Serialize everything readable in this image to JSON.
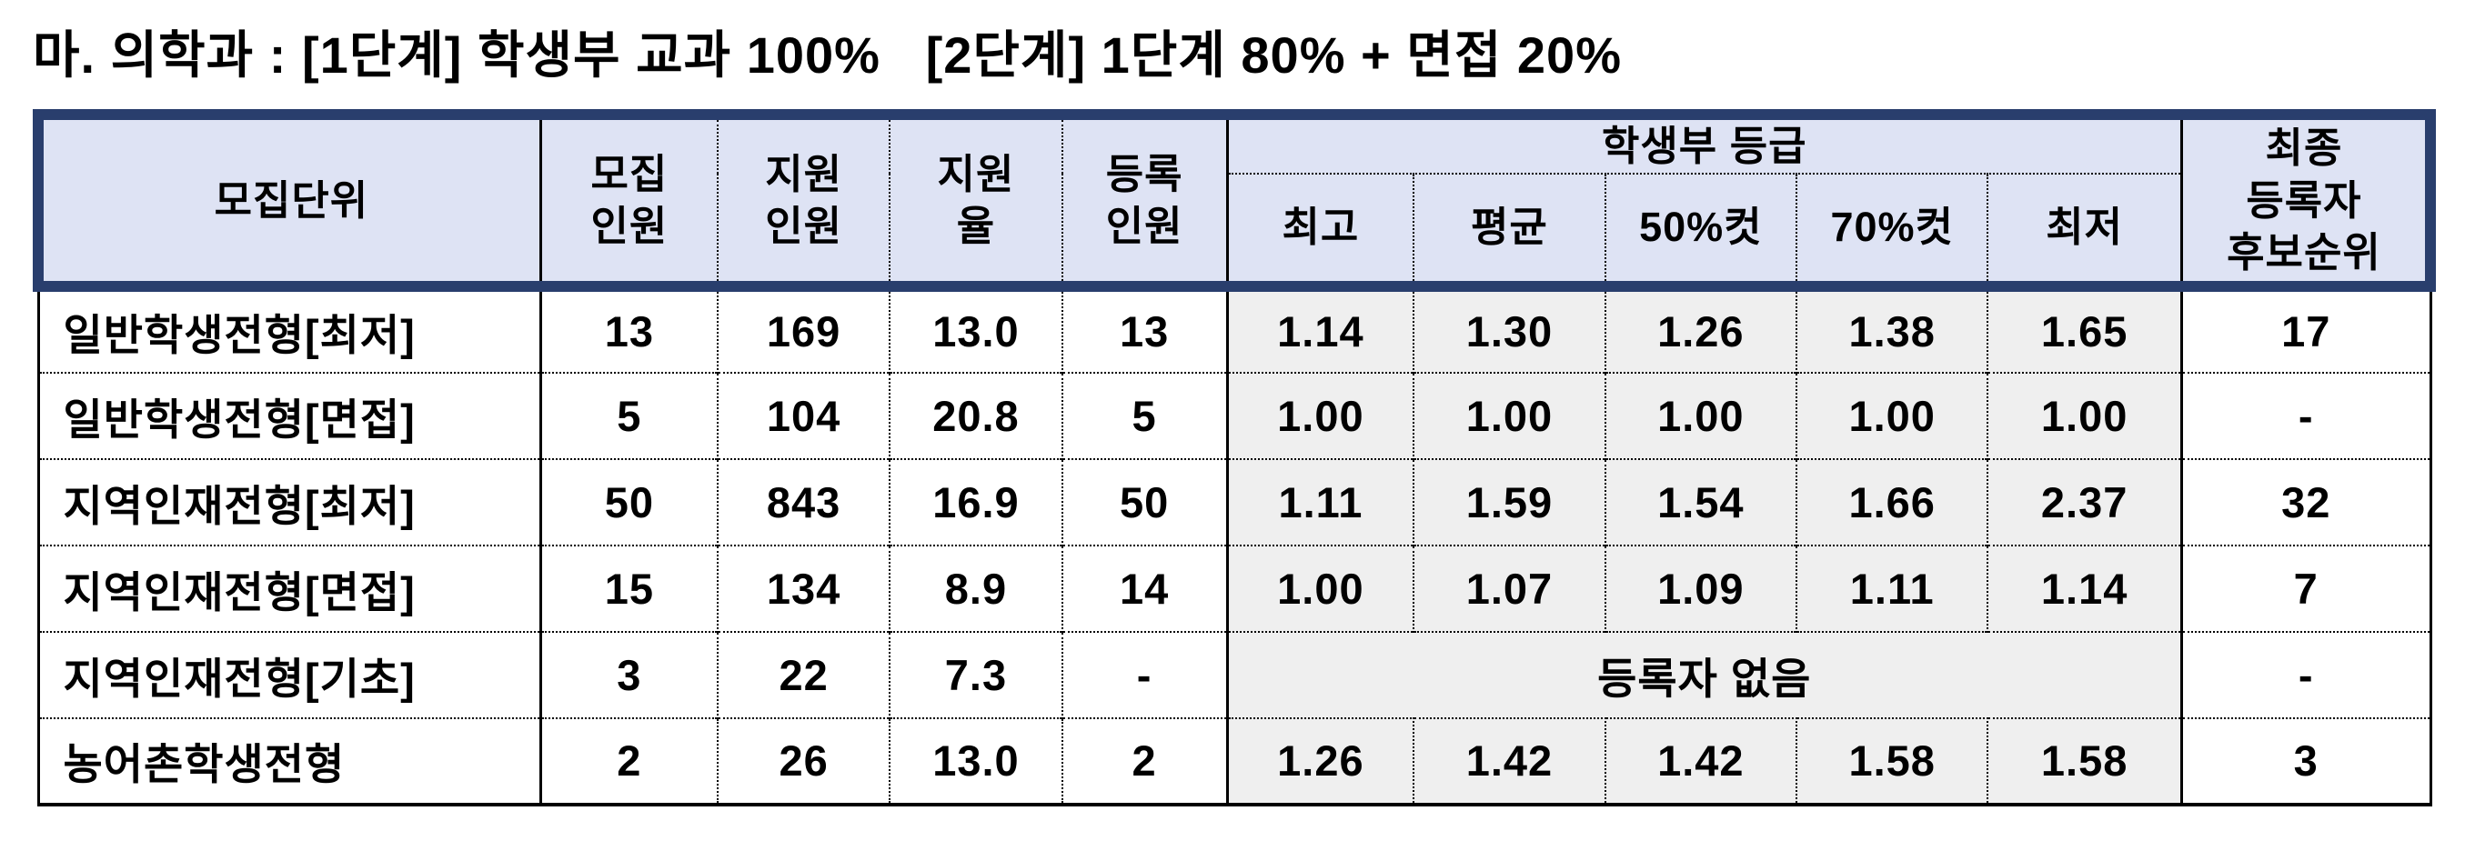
{
  "title": "마. 의학과 : [1단계] 학생부 교과 100%   [2단계] 1단계 80% + 면접 20%",
  "colors": {
    "navy_border": "#293e6d",
    "header_background": "#dee3f4",
    "grade_column_background": "#efefef",
    "text": "#000000"
  },
  "table": {
    "header": {
      "unit": "모집단위",
      "quota": "모집\n인원",
      "applicants": "지원\n인원",
      "ratio": "지원\n율",
      "enrolled": "등록\n인원",
      "grades_group": "학생부 등급",
      "grade_cols": [
        "최고",
        "평균",
        "50%컷",
        "70%컷",
        "최저"
      ],
      "waitlist": "최종\n등록자\n후보순위"
    },
    "rows": [
      {
        "unit": "일반학생전형[최저]",
        "quota": "13",
        "applicants": "169",
        "ratio": "13.0",
        "enrolled": "13",
        "grades": [
          "1.14",
          "1.30",
          "1.26",
          "1.38",
          "1.65"
        ],
        "waitlist": "17"
      },
      {
        "unit": "일반학생전형[면접]",
        "quota": "5",
        "applicants": "104",
        "ratio": "20.8",
        "enrolled": "5",
        "grades": [
          "1.00",
          "1.00",
          "1.00",
          "1.00",
          "1.00"
        ],
        "waitlist": "-"
      },
      {
        "unit": "지역인재전형[최저]",
        "quota": "50",
        "applicants": "843",
        "ratio": "16.9",
        "enrolled": "50",
        "grades": [
          "1.11",
          "1.59",
          "1.54",
          "1.66",
          "2.37"
        ],
        "waitlist": "32"
      },
      {
        "unit": "지역인재전형[면접]",
        "quota": "15",
        "applicants": "134",
        "ratio": "8.9",
        "enrolled": "14",
        "grades": [
          "1.00",
          "1.07",
          "1.09",
          "1.11",
          "1.14"
        ],
        "waitlist": "7"
      },
      {
        "unit": "지역인재전형[기초]",
        "quota": "3",
        "applicants": "22",
        "ratio": "7.3",
        "enrolled": "-",
        "grades_merged": "등록자 없음",
        "waitlist": "-"
      },
      {
        "unit": "농어촌학생전형",
        "quota": "2",
        "applicants": "26",
        "ratio": "13.0",
        "enrolled": "2",
        "grades": [
          "1.26",
          "1.42",
          "1.42",
          "1.58",
          "1.58"
        ],
        "waitlist": "3"
      }
    ]
  }
}
